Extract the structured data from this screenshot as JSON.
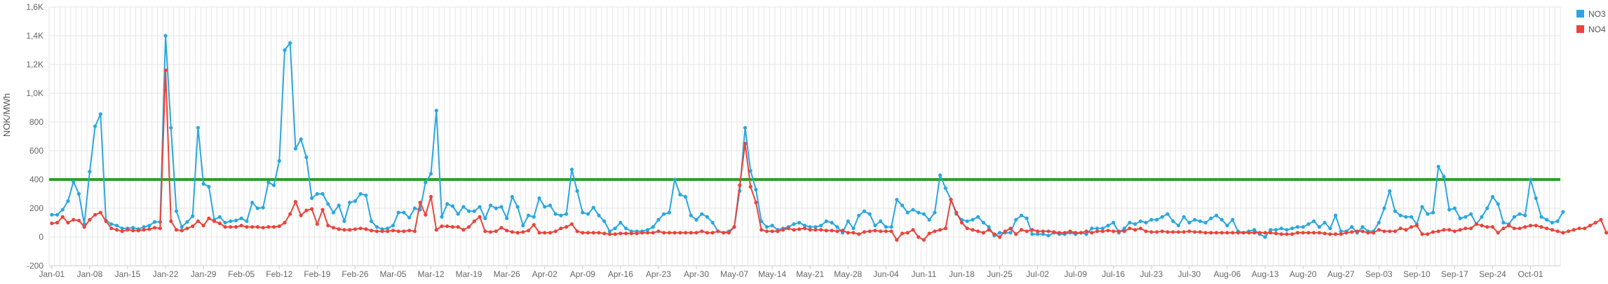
{
  "chart_data": {
    "type": "line",
    "ylabel": "NOK/MWh",
    "ylim": [
      -200,
      1600
    ],
    "yticks": [
      "-200",
      "0",
      "200",
      "400",
      "600",
      "800",
      "1,0K",
      "1,2K",
      "1,4K",
      "1,6K"
    ],
    "ytick_values": [
      -200,
      0,
      200,
      400,
      600,
      800,
      1000,
      1200,
      1400,
      1600
    ],
    "x_start": "Jan-01",
    "x_days": 279,
    "xticks": [
      "Jan-01",
      "Jan-08",
      "Jan-15",
      "Jan-22",
      "Jan-29",
      "Feb-05",
      "Feb-12",
      "Feb-19",
      "Feb-26",
      "Mar-05",
      "Mar-12",
      "Mar-19",
      "Mar-26",
      "Apr-02",
      "Apr-09",
      "Apr-16",
      "Apr-23",
      "Apr-30",
      "May-07",
      "May-14",
      "May-21",
      "May-28",
      "Jun-04",
      "Jun-11",
      "Jun-18",
      "Jun-25",
      "Jul-02",
      "Jul-09",
      "Jul-16",
      "Jul-23",
      "Jul-30",
      "Aug-06",
      "Aug-13",
      "Aug-20",
      "Aug-27",
      "Sep-03",
      "Sep-10",
      "Sep-17",
      "Sep-24",
      "Oct-01"
    ],
    "grid": true,
    "legend_position": "top-right",
    "reference_line": {
      "value": 400,
      "color": "#2ca02c"
    },
    "series": [
      {
        "name": "NO3",
        "color": "#2aa7e0",
        "values": [
          155,
          155,
          190,
          250,
          385,
          300,
          90,
          455,
          770,
          855,
          115,
          90,
          80,
          60,
          60,
          65,
          55,
          70,
          80,
          105,
          105,
          1400,
          760,
          180,
          70,
          105,
          145,
          760,
          370,
          350,
          120,
          140,
          100,
          110,
          115,
          130,
          110,
          240,
          200,
          205,
          380,
          360,
          530,
          1300,
          1350,
          615,
          680,
          555,
          270,
          300,
          300,
          230,
          170,
          220,
          110,
          240,
          250,
          300,
          290,
          110,
          70,
          55,
          60,
          80,
          170,
          170,
          135,
          200,
          190,
          380,
          440,
          880,
          140,
          230,
          215,
          160,
          210,
          180,
          180,
          210,
          130,
          220,
          200,
          210,
          130,
          280,
          210,
          80,
          150,
          140,
          270,
          210,
          220,
          160,
          150,
          160,
          470,
          320,
          170,
          160,
          205,
          150,
          110,
          40,
          60,
          100,
          60,
          40,
          40,
          40,
          50,
          70,
          120,
          160,
          170,
          400,
          295,
          280,
          150,
          120,
          160,
          140,
          100,
          40,
          30,
          40,
          70,
          320,
          760,
          460,
          330,
          110,
          70,
          80,
          50,
          60,
          70,
          90,
          100,
          80,
          70,
          70,
          80,
          110,
          100,
          70,
          30,
          110,
          60,
          150,
          180,
          160,
          80,
          110,
          70,
          70,
          260,
          220,
          170,
          190,
          170,
          160,
          120,
          170,
          430,
          340,
          260,
          160,
          120,
          110,
          120,
          140,
          100,
          70,
          10,
          30,
          30,
          30,
          120,
          150,
          130,
          20,
          20,
          20,
          10,
          30,
          20,
          20,
          30,
          20,
          30,
          20,
          60,
          60,
          60,
          80,
          100,
          30,
          60,
          100,
          90,
          110,
          100,
          120,
          120,
          140,
          160,
          110,
          80,
          140,
          100,
          120,
          110,
          100,
          130,
          150,
          120,
          80,
          120,
          40,
          30,
          40,
          50,
          20,
          0,
          50,
          50,
          60,
          50,
          60,
          70,
          70,
          90,
          110,
          70,
          100,
          60,
          150,
          40,
          40,
          70,
          30,
          70,
          40,
          40,
          100,
          200,
          320,
          180,
          150,
          140,
          140,
          90,
          210,
          160,
          170,
          490,
          420,
          190,
          200,
          130,
          140,
          160,
          90,
          140,
          200,
          280,
          230,
          100,
          90,
          140,
          160,
          150,
          400,
          270,
          140,
          120,
          100,
          110,
          175
        ]
      },
      {
        "name": "NO4",
        "color": "#e8453c",
        "values": [
          95,
          100,
          140,
          100,
          120,
          115,
          70,
          120,
          155,
          170,
          110,
          60,
          50,
          40,
          50,
          45,
          45,
          50,
          55,
          65,
          60,
          1160,
          110,
          50,
          45,
          60,
          75,
          110,
          80,
          130,
          110,
          95,
          70,
          70,
          70,
          80,
          70,
          70,
          70,
          65,
          70,
          70,
          75,
          100,
          160,
          245,
          150,
          185,
          195,
          90,
          190,
          80,
          65,
          55,
          50,
          50,
          55,
          60,
          55,
          45,
          40,
          40,
          40,
          45,
          40,
          40,
          45,
          40,
          240,
          155,
          280,
          50,
          75,
          75,
          70,
          70,
          50,
          70,
          110,
          140,
          40,
          35,
          40,
          65,
          45,
          35,
          30,
          35,
          45,
          85,
          30,
          30,
          30,
          40,
          60,
          70,
          90,
          40,
          30,
          30,
          30,
          30,
          25,
          20,
          20,
          25,
          25,
          25,
          25,
          30,
          30,
          30,
          40,
          30,
          30,
          30,
          30,
          30,
          30,
          30,
          40,
          30,
          30,
          40,
          30,
          30,
          70,
          360,
          650,
          350,
          240,
          50,
          40,
          40,
          40,
          50,
          60,
          50,
          55,
          60,
          50,
          50,
          50,
          45,
          45,
          40,
          45,
          30,
          30,
          20,
          35,
          40,
          45,
          40,
          40,
          40,
          -20,
          25,
          30,
          50,
          0,
          -20,
          25,
          40,
          50,
          60,
          260,
          170,
          100,
          60,
          50,
          40,
          30,
          50,
          20,
          0,
          40,
          60,
          20,
          50,
          40,
          50,
          40,
          40,
          40,
          35,
          30,
          30,
          40,
          30,
          30,
          40,
          30,
          40,
          40,
          45,
          40,
          40,
          40,
          60,
          50,
          60,
          40,
          35,
          35,
          40,
          35,
          35,
          35,
          35,
          40,
          35,
          35,
          30,
          30,
          30,
          30,
          30,
          30,
          30,
          30,
          30,
          30,
          30,
          30,
          30,
          25,
          20,
          20,
          20,
          30,
          30,
          30,
          30,
          30,
          25,
          20,
          20,
          20,
          30,
          35,
          40,
          40,
          30,
          30,
          50,
          40,
          40,
          40,
          60,
          50,
          70,
          80,
          20,
          20,
          35,
          40,
          50,
          50,
          40,
          50,
          60,
          60,
          90,
          80,
          70,
          70,
          30,
          60,
          80,
          60,
          60,
          70,
          80,
          80,
          70,
          60,
          50,
          40,
          30,
          40,
          50,
          60,
          60,
          80,
          100,
          120,
          30
        ]
      }
    ]
  }
}
